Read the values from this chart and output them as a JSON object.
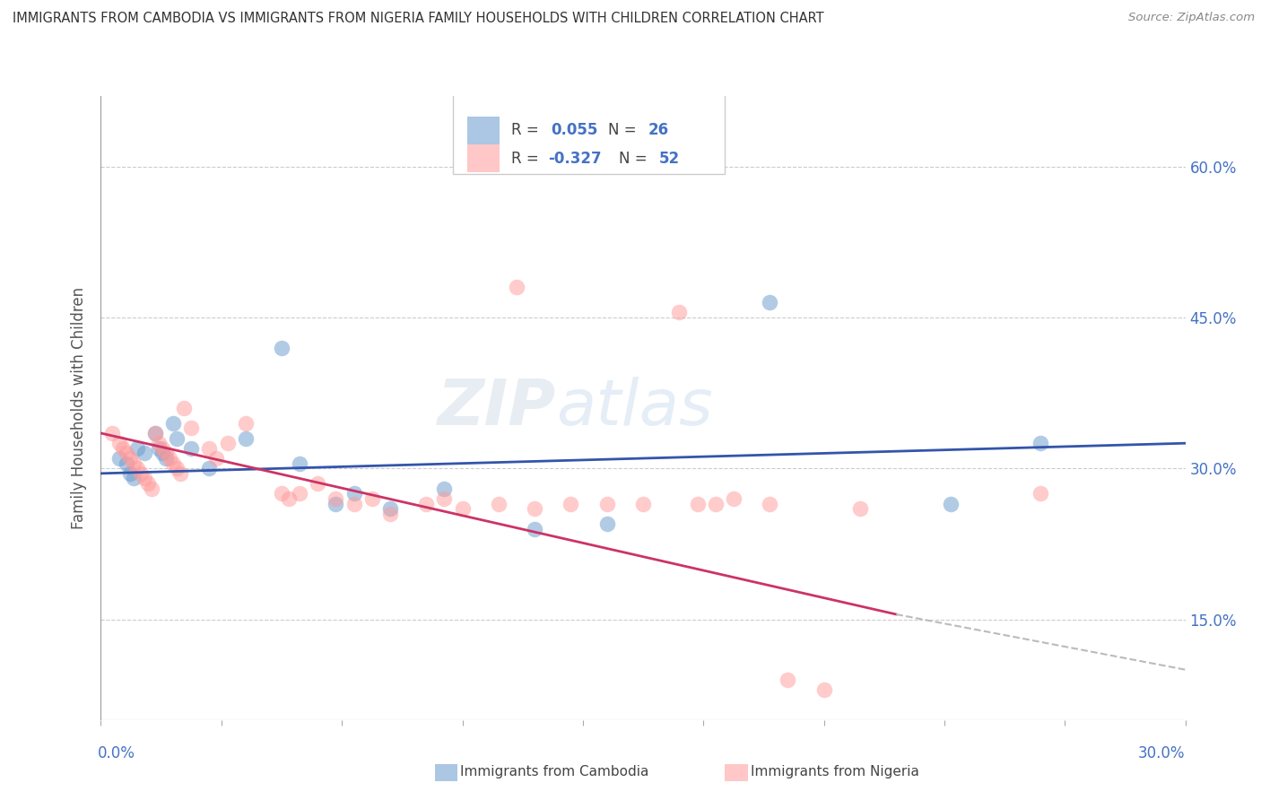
{
  "title": "IMMIGRANTS FROM CAMBODIA VS IMMIGRANTS FROM NIGERIA FAMILY HOUSEHOLDS WITH CHILDREN CORRELATION CHART",
  "source": "Source: ZipAtlas.com",
  "ylabel": "Family Households with Children",
  "yticks_labels": [
    "15.0%",
    "30.0%",
    "45.0%",
    "60.0%"
  ],
  "ytick_vals": [
    0.15,
    0.3,
    0.45,
    0.6
  ],
  "xlim": [
    0.0,
    0.3
  ],
  "ylim": [
    0.05,
    0.67
  ],
  "color_cambodia": "#6699CC",
  "color_nigeria": "#FF9999",
  "color_trendline_cambodia": "#3355AA",
  "color_trendline_nigeria": "#CC3366",
  "color_trendline_dashed": "#BBBBBB",
  "trendline_cam_y0": 0.295,
  "trendline_cam_y1": 0.325,
  "trendline_nig_y0": 0.335,
  "trendline_nig_y1_solid": 0.155,
  "trendline_nig_x_solid": 0.22,
  "trendline_nig_y1_dash": 0.1,
  "watermark_text": "ZIP atlas",
  "cambodia_points": [
    [
      0.005,
      0.31
    ],
    [
      0.007,
      0.305
    ],
    [
      0.008,
      0.295
    ],
    [
      0.009,
      0.29
    ],
    [
      0.01,
      0.32
    ],
    [
      0.012,
      0.315
    ],
    [
      0.015,
      0.335
    ],
    [
      0.016,
      0.32
    ],
    [
      0.017,
      0.315
    ],
    [
      0.018,
      0.31
    ],
    [
      0.02,
      0.345
    ],
    [
      0.021,
      0.33
    ],
    [
      0.025,
      0.32
    ],
    [
      0.03,
      0.3
    ],
    [
      0.04,
      0.33
    ],
    [
      0.05,
      0.42
    ],
    [
      0.055,
      0.305
    ],
    [
      0.065,
      0.265
    ],
    [
      0.07,
      0.275
    ],
    [
      0.08,
      0.26
    ],
    [
      0.095,
      0.28
    ],
    [
      0.12,
      0.24
    ],
    [
      0.14,
      0.245
    ],
    [
      0.185,
      0.465
    ],
    [
      0.235,
      0.265
    ],
    [
      0.26,
      0.325
    ]
  ],
  "nigeria_points": [
    [
      0.003,
      0.335
    ],
    [
      0.005,
      0.325
    ],
    [
      0.006,
      0.32
    ],
    [
      0.007,
      0.315
    ],
    [
      0.008,
      0.31
    ],
    [
      0.009,
      0.305
    ],
    [
      0.01,
      0.3
    ],
    [
      0.011,
      0.295
    ],
    [
      0.012,
      0.29
    ],
    [
      0.013,
      0.285
    ],
    [
      0.014,
      0.28
    ],
    [
      0.015,
      0.335
    ],
    [
      0.016,
      0.325
    ],
    [
      0.017,
      0.32
    ],
    [
      0.018,
      0.315
    ],
    [
      0.019,
      0.31
    ],
    [
      0.02,
      0.305
    ],
    [
      0.021,
      0.3
    ],
    [
      0.022,
      0.295
    ],
    [
      0.023,
      0.36
    ],
    [
      0.025,
      0.34
    ],
    [
      0.03,
      0.32
    ],
    [
      0.032,
      0.31
    ],
    [
      0.035,
      0.325
    ],
    [
      0.04,
      0.345
    ],
    [
      0.05,
      0.275
    ],
    [
      0.052,
      0.27
    ],
    [
      0.055,
      0.275
    ],
    [
      0.06,
      0.285
    ],
    [
      0.065,
      0.27
    ],
    [
      0.07,
      0.265
    ],
    [
      0.075,
      0.27
    ],
    [
      0.08,
      0.255
    ],
    [
      0.09,
      0.265
    ],
    [
      0.095,
      0.27
    ],
    [
      0.1,
      0.26
    ],
    [
      0.11,
      0.265
    ],
    [
      0.115,
      0.48
    ],
    [
      0.12,
      0.26
    ],
    [
      0.13,
      0.265
    ],
    [
      0.14,
      0.265
    ],
    [
      0.15,
      0.265
    ],
    [
      0.16,
      0.455
    ],
    [
      0.165,
      0.265
    ],
    [
      0.17,
      0.265
    ],
    [
      0.175,
      0.27
    ],
    [
      0.185,
      0.265
    ],
    [
      0.19,
      0.09
    ],
    [
      0.2,
      0.08
    ],
    [
      0.21,
      0.26
    ],
    [
      0.26,
      0.275
    ]
  ]
}
